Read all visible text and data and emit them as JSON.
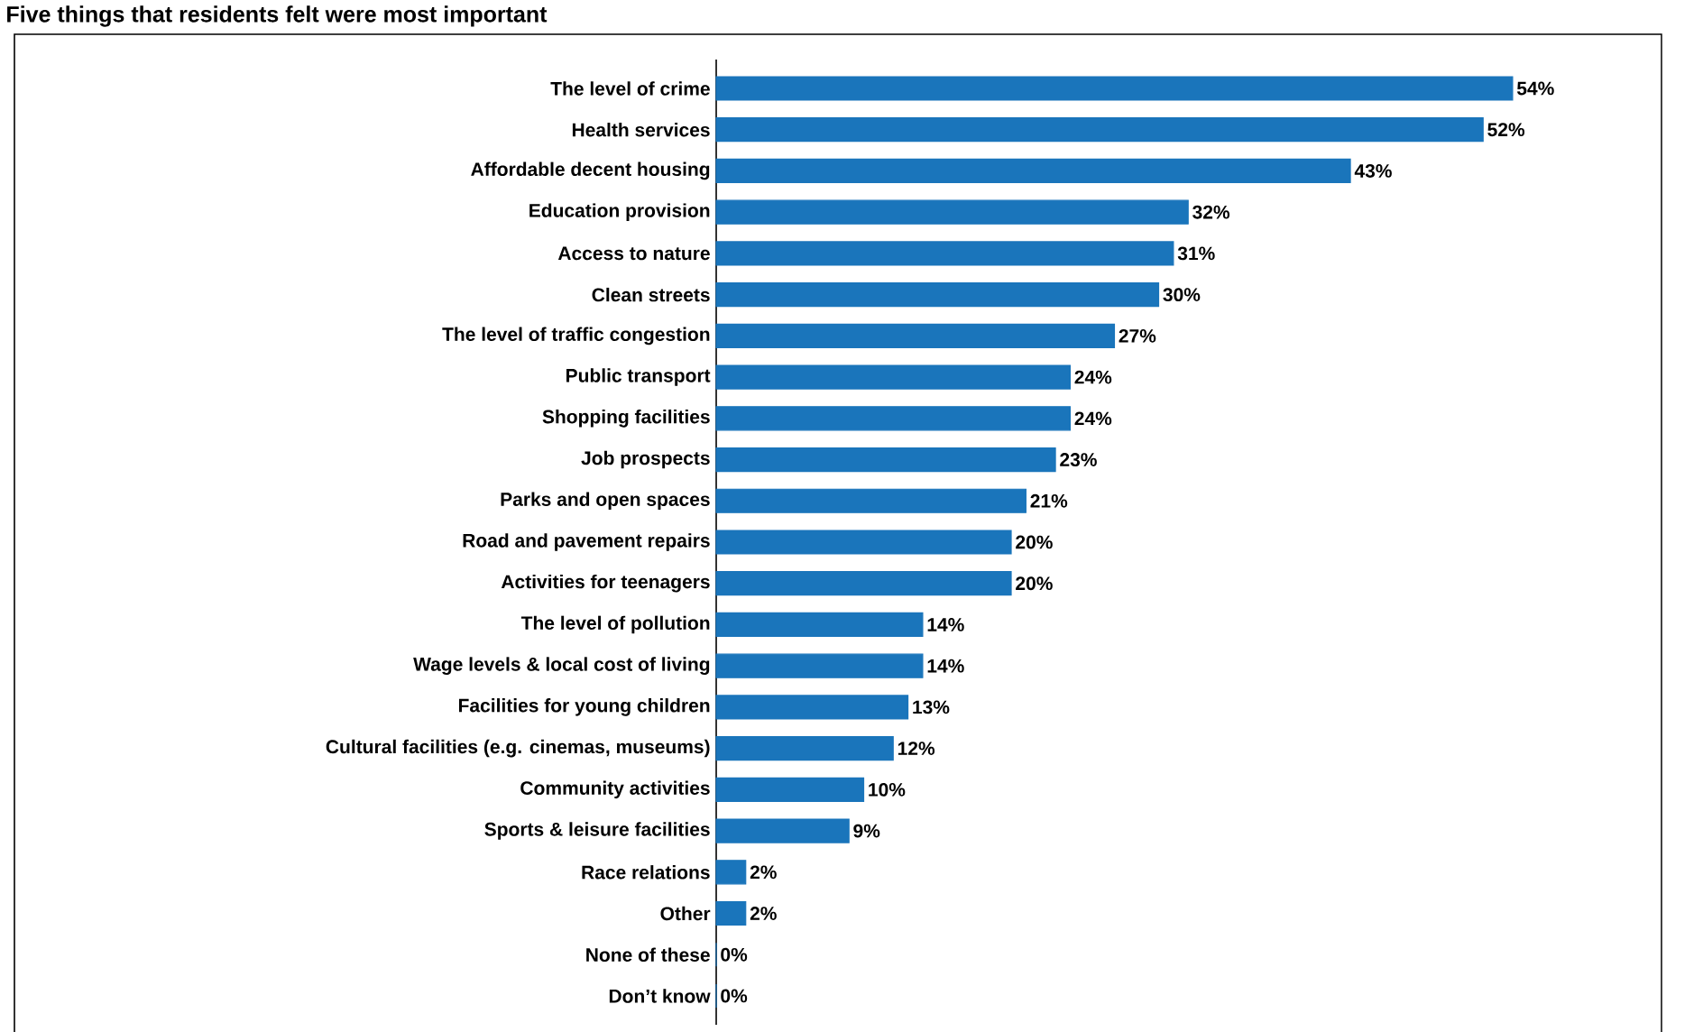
{
  "chart_data": {
    "type": "bar",
    "orientation": "horizontal",
    "title": "Five things that residents felt were most important",
    "categories": [
      "The level of crime",
      "Health services",
      "Affordable decent housing",
      "Education provision",
      "Access to nature",
      "Clean streets",
      "The level of traffic congestion",
      "Public transport",
      "Shopping facilities",
      "Job prospects",
      "Parks and open spaces",
      "Road and pavement repairs",
      "Activities for teenagers",
      "The level of pollution",
      "Wage levels & local cost of living",
      "Facilities for young children",
      "Cultural facilities (e.g. cinemas, museums)",
      "Community activities",
      "Sports & leisure facilities",
      "Race relations",
      "Other",
      "None of these",
      "Don’t know"
    ],
    "values": [
      54,
      52,
      43,
      32,
      31,
      30,
      27,
      24,
      24,
      23,
      21,
      20,
      20,
      14,
      14,
      13,
      12,
      10,
      9,
      2,
      2,
      0,
      0
    ],
    "value_labels": [
      "54%",
      "52%",
      "43%",
      "32%",
      "31%",
      "30%",
      "27%",
      "24%",
      "24%",
      "23%",
      "21%",
      "20%",
      "20%",
      "14%",
      "14%",
      "13%",
      "12%",
      "10%",
      "9%",
      "2%",
      "2%",
      "0%",
      "0%"
    ],
    "color": "#1a75bb",
    "tick_labels": "y"
  }
}
